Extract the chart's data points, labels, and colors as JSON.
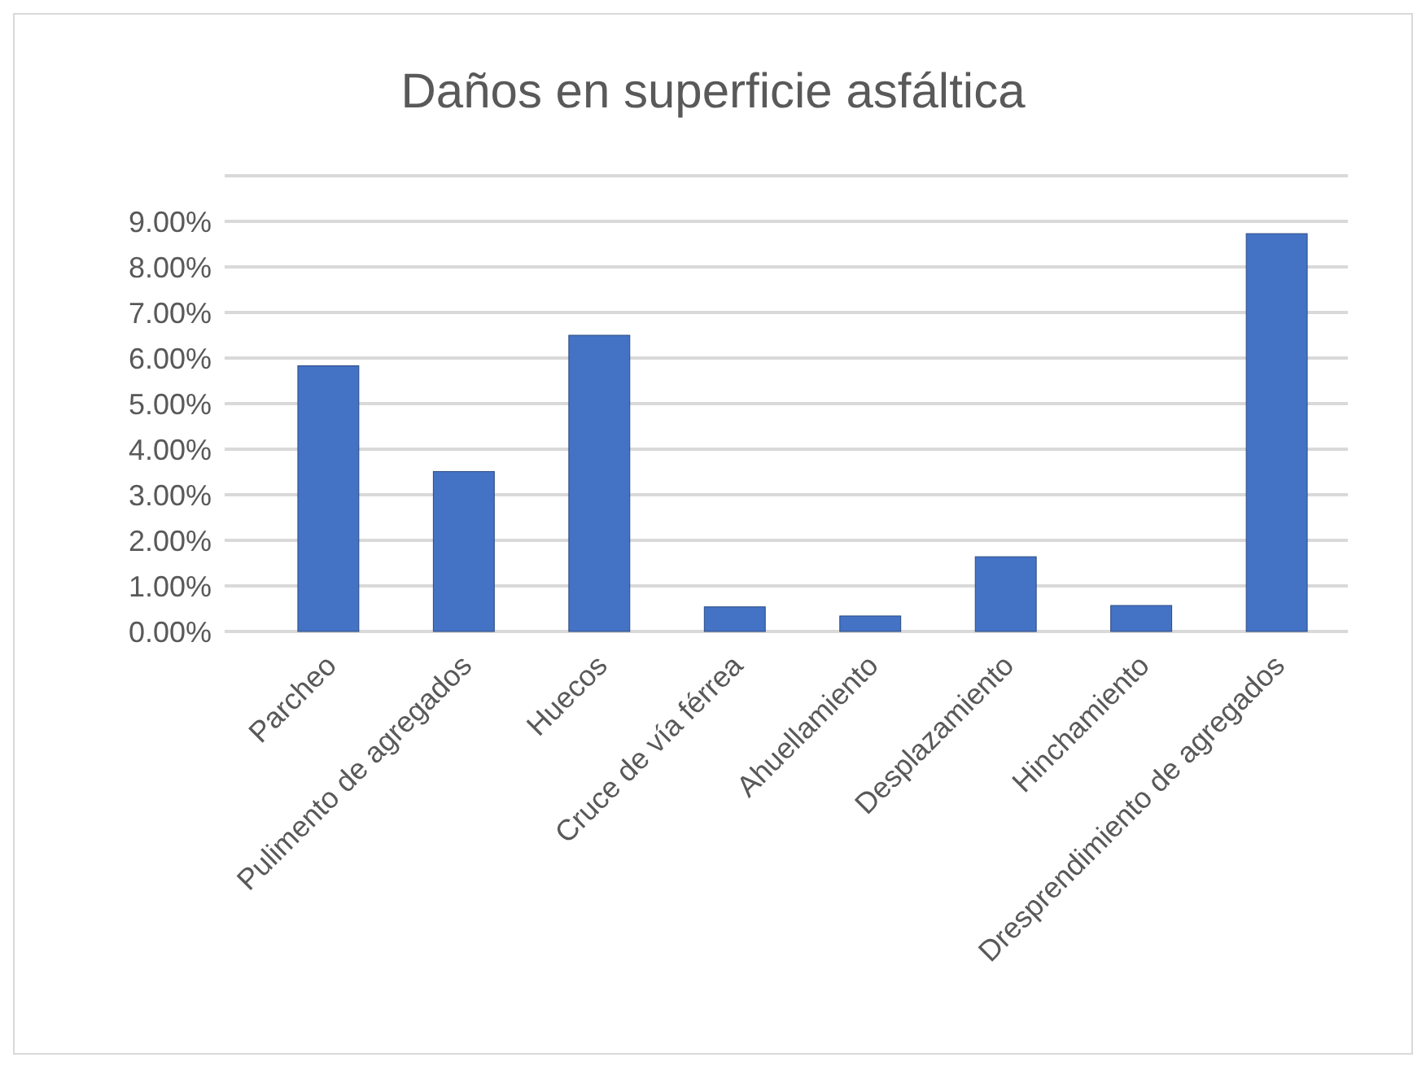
{
  "chart_data": {
    "type": "bar",
    "title": "Daños en  superficie asfáltica",
    "categories": [
      "Parcheo",
      "Pulimento de agregados",
      "Huecos",
      "Cruce de vía férrea",
      "Ahuellamiento",
      "Desplazamiento",
      "Hinchamiento",
      "Dresprendimiento de agregados"
    ],
    "values": [
      5.83,
      3.51,
      6.5,
      0.54,
      0.34,
      1.64,
      0.57,
      8.73
    ],
    "color": "#4472c4",
    "ylim": [
      0,
      10
    ],
    "yticks": [
      {
        "value": 0,
        "label": "0.00%"
      },
      {
        "value": 1,
        "label": "1.00%"
      },
      {
        "value": 2,
        "label": "2.00%"
      },
      {
        "value": 3,
        "label": "3.00%"
      },
      {
        "value": 4,
        "label": "4.00%"
      },
      {
        "value": 5,
        "label": "5.00%"
      },
      {
        "value": 6,
        "label": "6.00%"
      },
      {
        "value": 7,
        "label": "7.00%"
      },
      {
        "value": 8,
        "label": "8.00%"
      },
      {
        "value": 9,
        "label": "9.00%"
      },
      {
        "value": 10,
        "label": null
      }
    ],
    "grid": "y"
  }
}
